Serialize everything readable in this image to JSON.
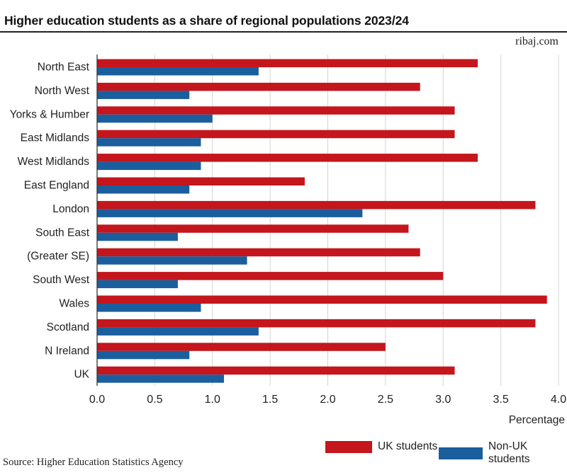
{
  "header": {
    "title": "Higher education students as a share of regional populations 2023/24",
    "credit": "ribaj.com"
  },
  "footer": {
    "source": "Source: Higher Education Statistics Agency"
  },
  "legend": {
    "uk_label": "UK students",
    "nonuk_label": "Non-UK students"
  },
  "chart_data": {
    "type": "bar",
    "orientation": "horizontal",
    "title": "Higher education students as a share of regional populations 2023/24",
    "xlabel": "Percentage",
    "ylabel": "",
    "xlim": [
      0,
      4.0
    ],
    "xticks": [
      "0.0",
      "0.5",
      "1.0",
      "1.5",
      "2.0",
      "2.5",
      "3.0",
      "3.5",
      "4.0"
    ],
    "grid": true,
    "legend_position": "bottom-right",
    "categories": [
      "North East",
      "North West",
      "Yorks & Humber",
      "East Midlands",
      "West Midlands",
      "East England",
      "London",
      "South East",
      "(Greater SE)",
      "South West",
      "Wales",
      "Scotland",
      "N Ireland",
      "UK"
    ],
    "series": [
      {
        "name": "UK students",
        "color": "#c4161c",
        "values": [
          3.3,
          2.8,
          3.1,
          3.1,
          3.3,
          1.8,
          3.8,
          2.7,
          2.8,
          3.0,
          3.9,
          3.8,
          2.5,
          3.1
        ]
      },
      {
        "name": "Non-UK students",
        "color": "#1a5e9e",
        "values": [
          1.4,
          0.8,
          1.0,
          0.9,
          0.9,
          0.8,
          2.3,
          0.7,
          1.3,
          0.7,
          0.9,
          1.4,
          0.8,
          1.1
        ]
      }
    ]
  }
}
